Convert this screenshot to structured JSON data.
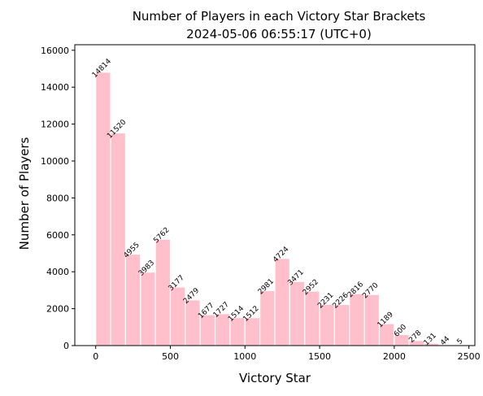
{
  "chart_data": {
    "type": "bar",
    "title": "Number of Players in each Victory Star Brackets",
    "subtitle": "2024-05-06 06:55:17 (UTC+0)",
    "xlabel": "Victory Star",
    "ylabel": "Number of Players",
    "bin_width": 100,
    "x": [
      0,
      100,
      200,
      300,
      400,
      500,
      600,
      700,
      800,
      900,
      1000,
      1100,
      1200,
      1300,
      1400,
      1500,
      1600,
      1700,
      1800,
      1900,
      2000,
      2100,
      2200,
      2300,
      2400
    ],
    "values": [
      14814,
      11520,
      4955,
      3983,
      5762,
      3177,
      2479,
      1677,
      1727,
      1514,
      1512,
      2981,
      4724,
      3471,
      2952,
      2231,
      2226,
      2816,
      2770,
      1189,
      600,
      278,
      131,
      44,
      5
    ],
    "xlim": [
      -140,
      2540
    ],
    "ylim": [
      0,
      16300
    ],
    "xticks": [
      0,
      500,
      1000,
      1500,
      2000,
      2500
    ],
    "yticks": [
      0,
      2000,
      4000,
      6000,
      8000,
      10000,
      12000,
      14000,
      16000
    ],
    "bar_color": "#ffc0cb",
    "bar_edge_color": "#ffffff",
    "grid": false,
    "legend": "none"
  }
}
